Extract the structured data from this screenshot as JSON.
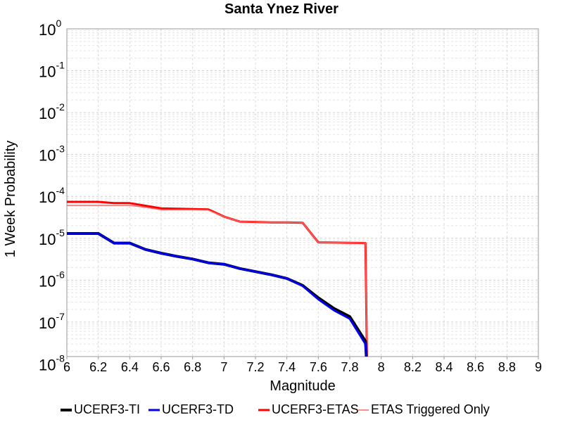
{
  "chart_data": {
    "type": "line",
    "title": "Santa Ynez River",
    "xlabel": "Magnitude",
    "ylabel": "1 Week Probability",
    "xlim": [
      6,
      9
    ],
    "ylim": [
      1.5e-08,
      1
    ],
    "yscale": "log",
    "grid": true,
    "legend_position": "bottom",
    "x_ticks": [
      "6",
      "6.2",
      "6.4",
      "6.6",
      "6.8",
      "7",
      "7.2",
      "7.4",
      "7.6",
      "7.8",
      "8",
      "8.2",
      "8.4",
      "8.6",
      "8.8",
      "9"
    ],
    "y_ticks": [
      {
        "base": "10",
        "exp": "0"
      },
      {
        "base": "10",
        "exp": "-1"
      },
      {
        "base": "10",
        "exp": "-2"
      },
      {
        "base": "10",
        "exp": "-3"
      },
      {
        "base": "10",
        "exp": "-4"
      },
      {
        "base": "10",
        "exp": "-5"
      },
      {
        "base": "10",
        "exp": "-6"
      },
      {
        "base": "10",
        "exp": "-7"
      },
      {
        "base": "10",
        "exp": "-8"
      }
    ],
    "series": [
      {
        "name": "UCERF3-TI",
        "color": "#000000",
        "width": 4,
        "x": [
          6.0,
          6.1,
          6.2,
          6.3,
          6.4,
          6.5,
          6.6,
          6.7,
          6.8,
          6.9,
          7.0,
          7.1,
          7.2,
          7.3,
          7.4,
          7.5,
          7.6,
          7.7,
          7.8,
          7.9,
          7.91
        ],
        "y": [
          1.3e-05,
          1.3e-05,
          1.3e-05,
          7.7e-06,
          7.7e-06,
          5.4e-06,
          4.4e-06,
          3.7e-06,
          3.2e-06,
          2.6e-06,
          2.4e-06,
          1.9e-06,
          1.6e-06,
          1.35e-06,
          1.1e-06,
          7.5e-07,
          3.8e-07,
          2.1e-07,
          1.35e-07,
          3.5e-08,
          1e-09
        ]
      },
      {
        "name": "UCERF3-TD",
        "color": "#0000ee",
        "width": 3,
        "x": [
          6.0,
          6.1,
          6.2,
          6.3,
          6.4,
          6.5,
          6.6,
          6.7,
          6.8,
          6.9,
          7.0,
          7.1,
          7.2,
          7.3,
          7.4,
          7.5,
          7.6,
          7.7,
          7.8,
          7.9,
          7.91
        ],
        "y": [
          1.3e-05,
          1.3e-05,
          1.3e-05,
          7.7e-06,
          7.7e-06,
          5.4e-06,
          4.4e-06,
          3.7e-06,
          3.2e-06,
          2.6e-06,
          2.4e-06,
          1.9e-06,
          1.6e-06,
          1.35e-06,
          1.1e-06,
          7.3e-07,
          3.5e-07,
          1.9e-07,
          1.2e-07,
          3e-08,
          1e-09
        ]
      },
      {
        "name": "UCERF3-ETAS",
        "color": "#ff0000",
        "width": 3,
        "x": [
          6.0,
          6.1,
          6.2,
          6.3,
          6.4,
          6.5,
          6.6,
          6.7,
          6.8,
          6.9,
          7.0,
          7.1,
          7.2,
          7.3,
          7.4,
          7.5,
          7.6,
          7.7,
          7.8,
          7.9,
          7.91
        ],
        "y": [
          7.4e-05,
          7.4e-05,
          7.4e-05,
          6.9e-05,
          6.9e-05,
          6e-05,
          5.2e-05,
          5.1e-05,
          5e-05,
          4.9e-05,
          3.3e-05,
          2.5e-05,
          2.45e-05,
          2.4e-05,
          2.4e-05,
          2.35e-05,
          8e-06,
          7.9e-06,
          7.8e-06,
          7.7e-06,
          1e-09
        ]
      },
      {
        "name": "ETAS Triggered Only",
        "color": "#ff6666",
        "width": 1.5,
        "x": [
          6.0,
          6.1,
          6.2,
          6.3,
          6.4,
          6.5,
          6.6,
          6.7,
          6.8,
          6.9,
          7.0,
          7.1,
          7.2,
          7.3,
          7.4,
          7.5,
          7.6,
          7.7,
          7.8,
          7.9,
          7.91
        ],
        "y": [
          6.1e-05,
          6.1e-05,
          6.1e-05,
          6.1e-05,
          6.1e-05,
          5.5e-05,
          4.8e-05,
          4.8e-05,
          4.8e-05,
          4.7e-05,
          3.3e-05,
          2.5e-05,
          2.45e-05,
          2.4e-05,
          2.4e-05,
          2.35e-05,
          8e-06,
          7.9e-06,
          7.8e-06,
          7.7e-06,
          1e-09
        ]
      }
    ]
  }
}
